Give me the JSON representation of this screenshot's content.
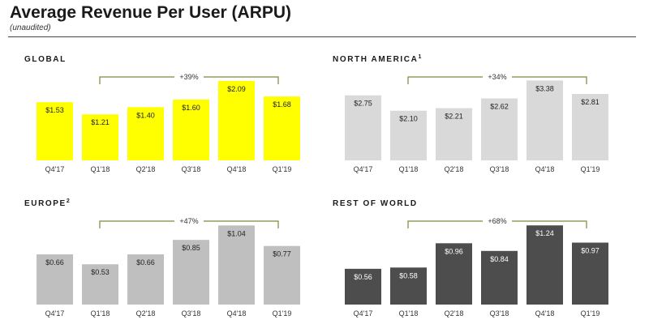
{
  "header": {
    "title": "Average Revenue Per User (ARPU)",
    "subtitle": "(unaudited)"
  },
  "chart_data": [
    {
      "type": "bar",
      "title": "GLOBAL",
      "title_sup": "",
      "categories": [
        "Q4'17",
        "Q1'18",
        "Q2'18",
        "Q3'18",
        "Q4'18",
        "Q1'19"
      ],
      "values": [
        1.53,
        1.21,
        1.4,
        1.6,
        2.09,
        1.68
      ],
      "data_labels": [
        "$1.53",
        "$1.21",
        "$1.40",
        "$1.60",
        "$2.09",
        "$1.68"
      ],
      "growth_label": "+39%",
      "ylim": [
        0,
        2.3
      ],
      "bar_color": "#ffff00",
      "label_color": "#222222"
    },
    {
      "type": "bar",
      "title": "NORTH AMERICA",
      "title_sup": "1",
      "categories": [
        "Q4'17",
        "Q1'18",
        "Q2'18",
        "Q3'18",
        "Q4'18",
        "Q1'19"
      ],
      "values": [
        2.75,
        2.1,
        2.21,
        2.62,
        3.38,
        2.81
      ],
      "data_labels": [
        "$2.75",
        "$2.10",
        "$2.21",
        "$2.62",
        "$3.38",
        "$2.81"
      ],
      "growth_label": "+34%",
      "ylim": [
        0,
        3.7
      ],
      "bar_color": "#d9d9d9",
      "label_color": "#222222"
    },
    {
      "type": "bar",
      "title": "EUROPE",
      "title_sup": "2",
      "categories": [
        "Q4'17",
        "Q1'18",
        "Q2'18",
        "Q3'18",
        "Q4'18",
        "Q1'19"
      ],
      "values": [
        0.66,
        0.53,
        0.66,
        0.85,
        1.04,
        0.77
      ],
      "data_labels": [
        "$0.66",
        "$0.53",
        "$0.66",
        "$0.85",
        "$1.04",
        "$0.77"
      ],
      "growth_label": "+47%",
      "ylim": [
        0,
        1.15
      ],
      "bar_color": "#bfbfbf",
      "label_color": "#222222"
    },
    {
      "type": "bar",
      "title": "REST OF WORLD",
      "title_sup": "",
      "categories": [
        "Q4'17",
        "Q1'18",
        "Q2'18",
        "Q3'18",
        "Q4'18",
        "Q1'19"
      ],
      "values": [
        0.56,
        0.58,
        0.96,
        0.84,
        1.24,
        0.97
      ],
      "data_labels": [
        "$0.56",
        "$0.58",
        "$0.96",
        "$0.84",
        "$1.24",
        "$0.97"
      ],
      "growth_label": "+68%",
      "ylim": [
        0,
        1.37
      ],
      "bar_color": "#4d4d4d",
      "label_color": "#ffffff"
    }
  ],
  "style": {
    "growth_bracket_color": "#7a8a3a"
  }
}
